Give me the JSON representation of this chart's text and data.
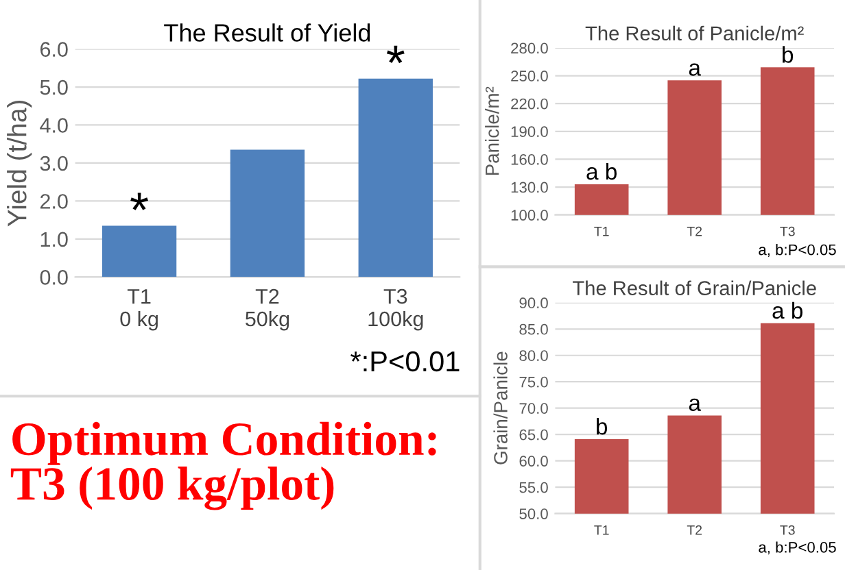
{
  "chart_data": [
    {
      "type": "bar",
      "title": "The Result of Yield",
      "ylabel": "Yield (t/ha)",
      "categories": [
        "T1\n0 kg",
        "T2\n50kg",
        "T3\n100kg"
      ],
      "values": [
        1.35,
        3.35,
        5.22
      ],
      "color": "#4f81bd",
      "ylim": [
        0,
        6
      ],
      "yticks": [
        {
          "value": 0,
          "label": "0.0"
        },
        {
          "value": 1,
          "label": "1.0"
        },
        {
          "value": 2,
          "label": "2.0"
        },
        {
          "value": 3,
          "label": "3.0"
        },
        {
          "value": 4,
          "label": "4.0"
        },
        {
          "value": 5,
          "label": "5.0"
        },
        {
          "value": 6,
          "label": "6.0"
        }
      ],
      "grid": "y",
      "annotations": [
        {
          "text": "*",
          "x": "T1\n0 kg",
          "y": 1.35
        },
        {
          "text": "*",
          "x": "T3\n100kg",
          "y": 5.22
        },
        "*:P<0.01",
        "Optimum Condition:\nT3 (100 kg/plot)"
      ]
    },
    {
      "type": "bar",
      "title": "The Result of Panicle/m²",
      "ylabel": "Panicle/m²",
      "categories": [
        "T1",
        "T2",
        "T3"
      ],
      "values": [
        133,
        245,
        259
      ],
      "color": "#c0504d",
      "ylim": [
        100,
        280
      ],
      "yticks": [
        {
          "value": 100,
          "label": "100.0"
        },
        {
          "value": 130,
          "label": "130.0"
        },
        {
          "value": 160,
          "label": "160.0"
        },
        {
          "value": 190,
          "label": "190.0"
        },
        {
          "value": 220,
          "label": "220.0"
        },
        {
          "value": 250,
          "label": "250.0"
        },
        {
          "value": 280,
          "label": "280.0"
        }
      ],
      "grid": "y",
      "annotations": [
        {
          "text": "a b",
          "x": "T1",
          "y": 133
        },
        {
          "text": "a",
          "x": "T2",
          "y": 245
        },
        {
          "text": "b",
          "x": "T3",
          "y": 259
        },
        "a, b:P<0.05"
      ]
    },
    {
      "type": "bar",
      "title": "The Result of Grain/Panicle",
      "ylabel": "Grain/Panicle",
      "categories": [
        "T1",
        "T2",
        "T3"
      ],
      "values": [
        64.1,
        68.6,
        86.1
      ],
      "color": "#c0504d",
      "ylim": [
        50,
        90
      ],
      "yticks": [
        {
          "value": 50,
          "label": "50.0"
        },
        {
          "value": 55,
          "label": "55.0"
        },
        {
          "value": 60,
          "label": "60.0"
        },
        {
          "value": 65,
          "label": "65.0"
        },
        {
          "value": 70,
          "label": "70.0"
        },
        {
          "value": 75,
          "label": "75.0"
        },
        {
          "value": 80,
          "label": "80.0"
        },
        {
          "value": 85,
          "label": "85.0"
        },
        {
          "value": 90,
          "label": "90.0"
        }
      ],
      "grid": "y",
      "annotations": [
        {
          "text": "b",
          "x": "T1",
          "y": 64.1
        },
        {
          "text": "a",
          "x": "T2",
          "y": 68.6
        },
        {
          "text": "a b",
          "x": "T3",
          "y": 86.1
        },
        "a, b:P<0.05"
      ]
    }
  ]
}
